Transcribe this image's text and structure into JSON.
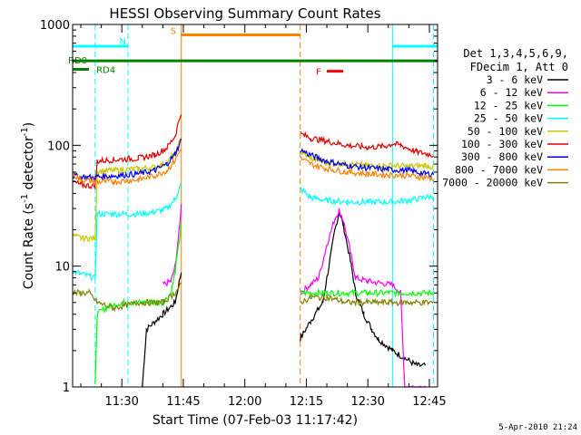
{
  "chart_data": {
    "type": "line",
    "title": "HESSI Observing Summary Count Rates",
    "xlabel": "Start Time (07-Feb-03 11:17:42)",
    "ylabel_main": "Count Rate (s",
    "ylabel_sup1": "-1",
    "ylabel_mid": " detector",
    "ylabel_sup2": "-1",
    "ylabel_end": ")",
    "y_scale": "log",
    "ylim": [
      1,
      1000
    ],
    "xlim_minutes": [
      18,
      107
    ],
    "y_ticks": [
      {
        "value": 1,
        "label": "1"
      },
      {
        "value": 10,
        "label": "10"
      },
      {
        "value": 100,
        "label": "100"
      },
      {
        "value": 1000,
        "label": "1000"
      }
    ],
    "x_ticks": [
      {
        "value": 30,
        "label": "11:30"
      },
      {
        "value": 45,
        "label": "11:45"
      },
      {
        "value": 60,
        "label": "12:00"
      },
      {
        "value": 75,
        "label": "12:15"
      },
      {
        "value": 90,
        "label": "12:30"
      },
      {
        "value": 105,
        "label": "12:45"
      }
    ],
    "legend_header": [
      "Det 1,3,4,5,6,9,",
      "FDecim 1, Att 0"
    ],
    "legend_position": "right",
    "series": [
      {
        "name": "3 - 6 keV",
        "color": "#000000",
        "points": [
          [
            35,
            1
          ],
          [
            36,
            3
          ],
          [
            40,
            4
          ],
          [
            43,
            5
          ],
          [
            44.5,
            9
          ],
          [
            73.5,
            2.5
          ],
          [
            76,
            3.5
          ],
          [
            79,
            5
          ],
          [
            82,
            20
          ],
          [
            83,
            28
          ],
          [
            84,
            22
          ],
          [
            86,
            10
          ],
          [
            87,
            6
          ],
          [
            89,
            4
          ],
          [
            91,
            3
          ],
          [
            92.5,
            2.5
          ],
          [
            96,
            2
          ],
          [
            102,
            1.5
          ],
          [
            104,
            1.5
          ]
        ]
      },
      {
        "name": "6 - 12 keV",
        "color": "#ff00ff",
        "points": [
          [
            40,
            7
          ],
          [
            42,
            7.5
          ],
          [
            43,
            10
          ],
          [
            44,
            20
          ],
          [
            44.5,
            32
          ],
          [
            73.5,
            6
          ],
          [
            76,
            7
          ],
          [
            78,
            8
          ],
          [
            80,
            15
          ],
          [
            82,
            25
          ],
          [
            83,
            29
          ],
          [
            84,
            24
          ],
          [
            86,
            12
          ],
          [
            87,
            8
          ],
          [
            90,
            7.5
          ],
          [
            96,
            7
          ],
          [
            98,
            6
          ],
          [
            99,
            1
          ],
          [
            104,
            1
          ]
        ]
      },
      {
        "name": "12 - 25 keV",
        "color": "#00ff00",
        "points": [
          [
            23.5,
            1
          ],
          [
            24,
            4
          ],
          [
            26,
            4.5
          ],
          [
            30,
            5
          ],
          [
            35,
            5
          ],
          [
            40,
            5
          ],
          [
            42,
            6
          ],
          [
            43,
            9
          ],
          [
            44,
            16
          ],
          [
            44.5,
            22
          ],
          [
            73.5,
            6
          ],
          [
            80,
            6
          ],
          [
            85,
            6
          ],
          [
            90,
            6
          ],
          [
            95,
            6
          ],
          [
            100,
            6
          ],
          [
            106,
            6
          ]
        ]
      },
      {
        "name": "25 - 50 keV",
        "color": "#00ffff",
        "points": [
          [
            18,
            9
          ],
          [
            23.5,
            8
          ],
          [
            24,
            27
          ],
          [
            28,
            27
          ],
          [
            34,
            27
          ],
          [
            38,
            28
          ],
          [
            41,
            30
          ],
          [
            43,
            36
          ],
          [
            44.5,
            48
          ],
          [
            73.5,
            44
          ],
          [
            76,
            37
          ],
          [
            80,
            35
          ],
          [
            85,
            34
          ],
          [
            90,
            34
          ],
          [
            96,
            34
          ],
          [
            100,
            35
          ],
          [
            104,
            37
          ],
          [
            106,
            38
          ]
        ]
      },
      {
        "name": "50 - 100 keV",
        "color": "#c8c800",
        "points": [
          [
            18,
            18
          ],
          [
            20,
            17
          ],
          [
            22,
            17
          ],
          [
            23.5,
            17
          ],
          [
            24,
            61
          ],
          [
            28,
            62
          ],
          [
            34,
            64
          ],
          [
            38,
            66
          ],
          [
            41,
            72
          ],
          [
            43,
            85
          ],
          [
            44.5,
            115
          ],
          [
            73.5,
            88
          ],
          [
            76,
            78
          ],
          [
            80,
            72
          ],
          [
            85,
            70
          ],
          [
            90,
            68
          ],
          [
            96,
            68
          ],
          [
            100,
            67
          ],
          [
            104,
            68
          ],
          [
            106,
            66
          ]
        ]
      },
      {
        "name": "100 - 300 keV",
        "color": "#e00000",
        "points": [
          [
            18,
            50
          ],
          [
            20,
            47
          ],
          [
            23.5,
            46
          ],
          [
            24,
            74
          ],
          [
            28,
            76
          ],
          [
            34,
            78
          ],
          [
            38,
            83
          ],
          [
            41,
            95
          ],
          [
            43,
            120
          ],
          [
            44.5,
            190
          ],
          [
            73.5,
            125
          ],
          [
            76,
            115
          ],
          [
            80,
            108
          ],
          [
            85,
            100
          ],
          [
            90,
            96
          ],
          [
            94,
            98
          ],
          [
            96,
            103
          ],
          [
            98,
            100
          ],
          [
            102,
            88
          ],
          [
            106,
            83
          ]
        ]
      },
      {
        "name": "300 - 800 keV",
        "color": "#0000e0",
        "points": [
          [
            18,
            56
          ],
          [
            20,
            55
          ],
          [
            23.5,
            54
          ],
          [
            24,
            55
          ],
          [
            28,
            56
          ],
          [
            34,
            58
          ],
          [
            38,
            62
          ],
          [
            41,
            70
          ],
          [
            43,
            85
          ],
          [
            44.5,
            110
          ],
          [
            73.5,
            92
          ],
          [
            76,
            83
          ],
          [
            80,
            74
          ],
          [
            85,
            68
          ],
          [
            90,
            65
          ],
          [
            95,
            63
          ],
          [
            100,
            62
          ],
          [
            104,
            58
          ],
          [
            106,
            58
          ]
        ]
      },
      {
        "name": "800 - 7000 keV",
        "color": "#ff8000",
        "points": [
          [
            18,
            58
          ],
          [
            20,
            52
          ],
          [
            23.5,
            50
          ],
          [
            24,
            50
          ],
          [
            28,
            50
          ],
          [
            34,
            52
          ],
          [
            38,
            56
          ],
          [
            41,
            62
          ],
          [
            43,
            75
          ],
          [
            44.5,
            95
          ],
          [
            73.5,
            78
          ],
          [
            76,
            70
          ],
          [
            80,
            64
          ],
          [
            85,
            60
          ],
          [
            90,
            58
          ],
          [
            95,
            57
          ],
          [
            100,
            56
          ],
          [
            104,
            54
          ],
          [
            106,
            53
          ]
        ]
      },
      {
        "name": "7000 - 20000 keV",
        "color": "#808000",
        "points": [
          [
            18,
            6
          ],
          [
            20,
            6
          ],
          [
            22,
            6
          ],
          [
            24,
            5
          ],
          [
            28,
            4.5
          ],
          [
            34,
            5
          ],
          [
            40,
            5
          ],
          [
            43,
            6
          ],
          [
            44.5,
            7
          ],
          [
            73.5,
            5
          ],
          [
            76,
            5.5
          ],
          [
            80,
            5.5
          ],
          [
            85,
            5
          ],
          [
            90,
            5
          ],
          [
            95,
            5
          ],
          [
            100,
            5
          ],
          [
            106,
            5
          ]
        ]
      }
    ],
    "status_bars": [
      {
        "label": "N",
        "color": "#00ffff",
        "y": 660,
        "segments": [
          [
            18,
            31.5
          ],
          [
            96,
            107
          ]
        ]
      },
      {
        "label": "S",
        "color": "#ff8000",
        "y": 820,
        "segments": [
          [
            44.5,
            73.5
          ]
        ]
      },
      {
        "label": "F",
        "color": "#ff0000",
        "y": 410,
        "segments": [
          [
            80,
            84
          ]
        ]
      },
      {
        "label": "RD0",
        "color": "#008000",
        "y": 500,
        "segments": [
          [
            18,
            107
          ]
        ]
      },
      {
        "label": "RD4",
        "color": "#008000",
        "y": 425,
        "segments": [
          [
            18,
            22
          ]
        ]
      }
    ],
    "vertical_markers": [
      {
        "x": 23.5,
        "color": "#00ffff",
        "style": "dashed"
      },
      {
        "x": 31.5,
        "color": "#00ffff",
        "style": "dashed"
      },
      {
        "x": 44.5,
        "color": "#ff8000",
        "style": "solid"
      },
      {
        "x": 73.5,
        "color": "#ff8000",
        "style": "dashed"
      },
      {
        "x": 96,
        "color": "#00ffff",
        "style": "solid"
      },
      {
        "x": 106,
        "color": "#00ffff",
        "style": "dashed"
      }
    ]
  },
  "footer": {
    "timestamp": "5-Apr-2010 21:24"
  }
}
